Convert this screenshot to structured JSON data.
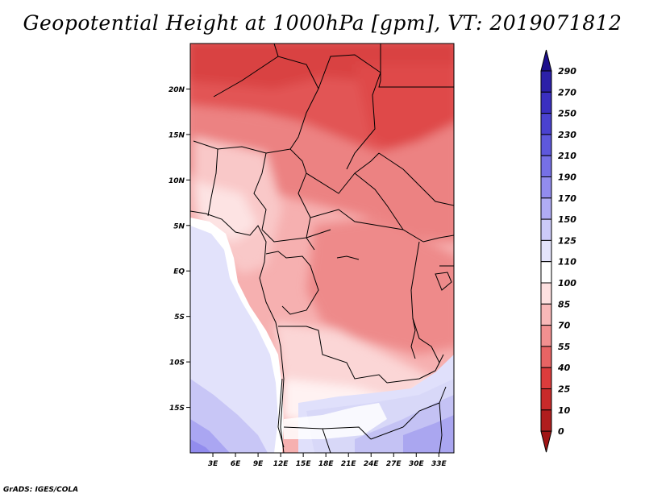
{
  "title": "Geopotential Height at 1000hPa [gpm], VT: 2019071812",
  "footer": "GrADS: IGES/COLA",
  "map": {
    "lon_range": [
      0,
      35
    ],
    "lat_range": [
      -20,
      25
    ],
    "x_ticks": [
      {
        "lon": 3,
        "label": "3E"
      },
      {
        "lon": 6,
        "label": "6E"
      },
      {
        "lon": 9,
        "label": "9E"
      },
      {
        "lon": 12,
        "label": "12E"
      },
      {
        "lon": 15,
        "label": "15E"
      },
      {
        "lon": 18,
        "label": "18E"
      },
      {
        "lon": 21,
        "label": "21E"
      },
      {
        "lon": 24,
        "label": "24E"
      },
      {
        "lon": 27,
        "label": "27E"
      },
      {
        "lon": 30,
        "label": "30E"
      },
      {
        "lon": 33,
        "label": "33E"
      }
    ],
    "y_ticks": [
      {
        "lat": 20,
        "label": "20N"
      },
      {
        "lat": 15,
        "label": "15N"
      },
      {
        "lat": 10,
        "label": "10N"
      },
      {
        "lat": 5,
        "label": "5N"
      },
      {
        "lat": 0,
        "label": "EQ"
      },
      {
        "lat": -5,
        "label": "5S"
      },
      {
        "lat": -10,
        "label": "10S"
      },
      {
        "lat": -15,
        "label": "15S"
      }
    ]
  },
  "colorbar": {
    "levels": [
      "290",
      "270",
      "250",
      "230",
      "210",
      "190",
      "170",
      "150",
      "125",
      "110",
      "100",
      "85",
      "70",
      "55",
      "40",
      "25",
      "10",
      "0"
    ],
    "colors": [
      "#1d0f8c",
      "#2c20a8",
      "#3a2fc0",
      "#4a42d0",
      "#5e58dc",
      "#7670e6",
      "#928cee",
      "#b0acf4",
      "#cccaf8",
      "#e4e4fb",
      "#ffffff",
      "#fde0e0",
      "#f8b8b8",
      "#f29090",
      "#e86464",
      "#dc3c3c",
      "#c82a2a",
      "#b01e1e",
      "#a01414"
    ]
  },
  "colors": {
    "land_border": "#000000",
    "frame": "#000000"
  }
}
